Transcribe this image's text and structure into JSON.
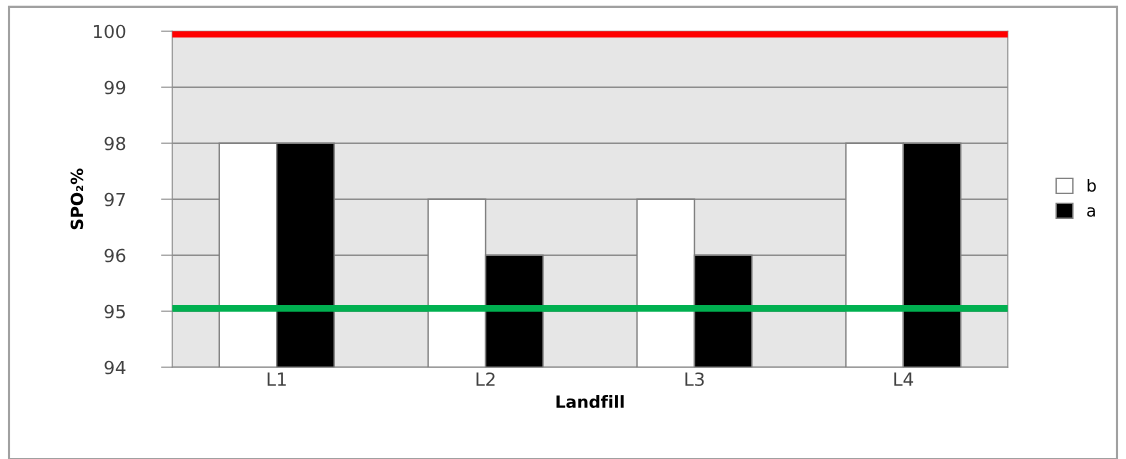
{
  "chart_data": {
    "type": "bar",
    "xlabel": "Landfill",
    "ylabel": "SPO₂%",
    "categories": [
      "L1",
      "L2",
      "L3",
      "L4"
    ],
    "series": [
      {
        "name": "b",
        "color": "#ffffff",
        "values": [
          98,
          97,
          97,
          98
        ]
      },
      {
        "name": "a",
        "color": "#000000",
        "values": [
          98,
          96,
          96,
          98
        ]
      }
    ],
    "ylim": [
      94,
      100
    ],
    "yticks": [
      94,
      95,
      96,
      97,
      98,
      99,
      100
    ],
    "grid": "y",
    "legend": "right",
    "ref_lines": [
      {
        "axis": "y",
        "value": 99.95,
        "color": "#ff0000"
      },
      {
        "axis": "y",
        "value": 95.05,
        "color": "#00b050"
      }
    ]
  }
}
